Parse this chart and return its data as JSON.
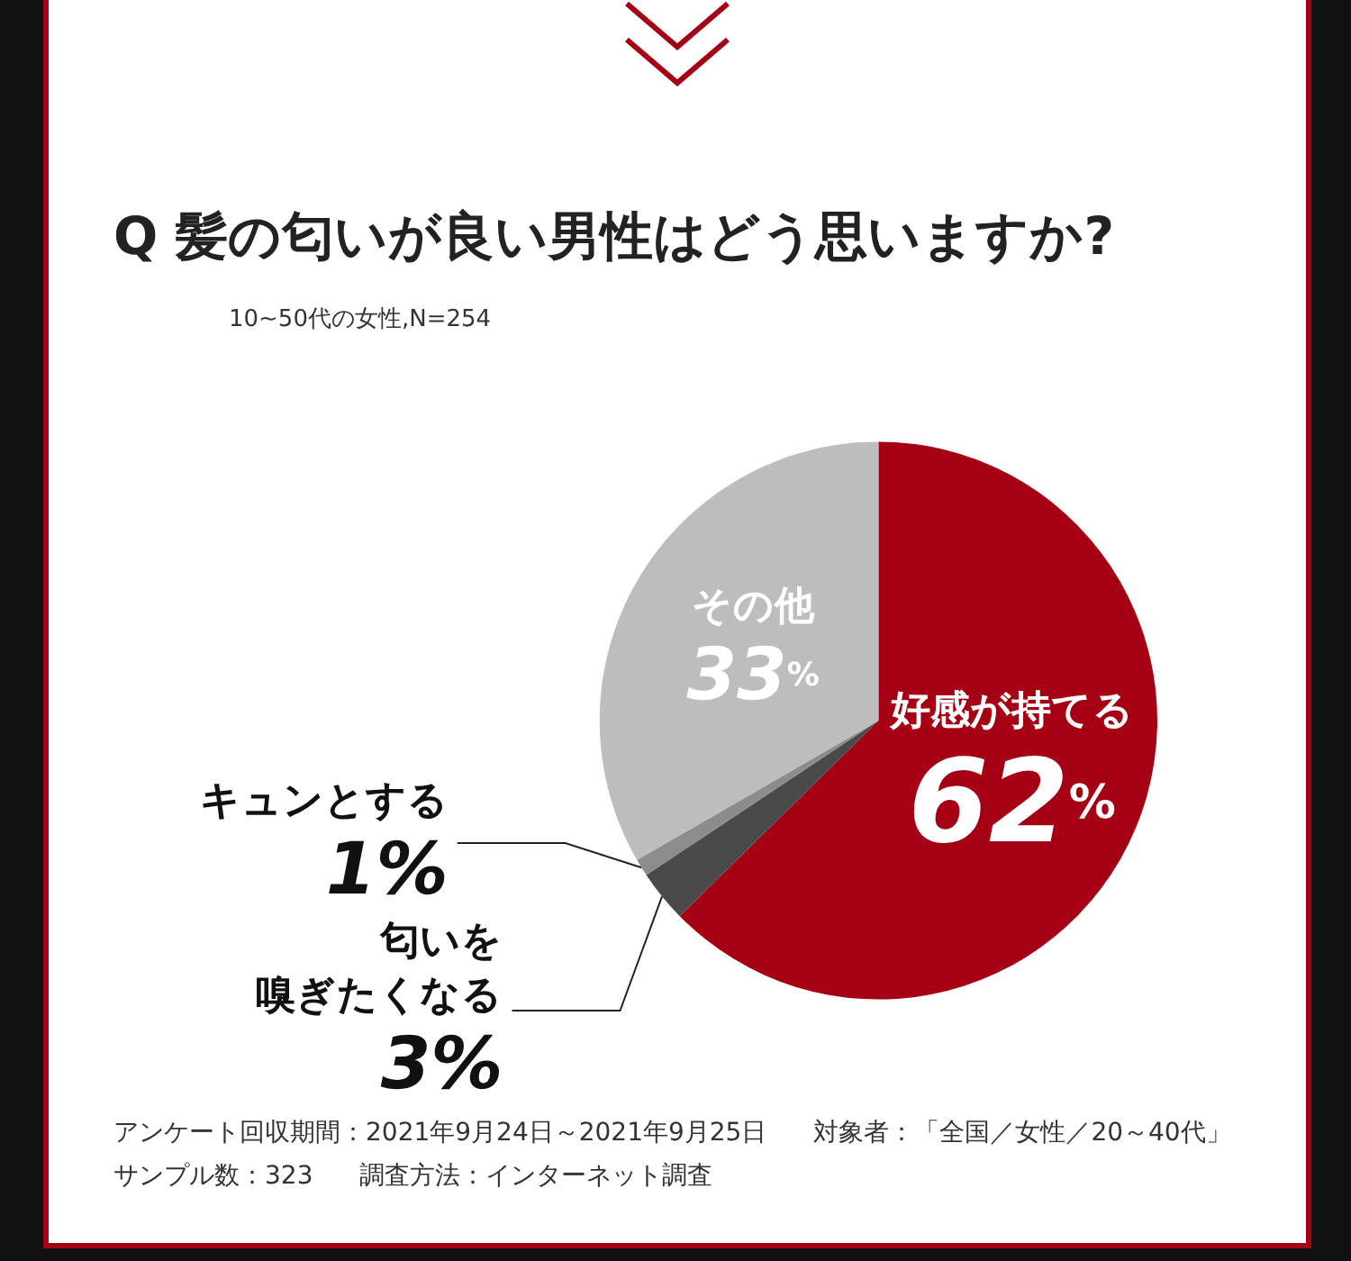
{
  "chart_data": {
    "type": "pie",
    "title": "Q 髪の匂いが良い男性はどう思いますか?",
    "subtitle": "10~50代の女性,N=254",
    "categories": [
      "好感が持てる",
      "匂いを嗅ぎたくなる",
      "キュンとする",
      "その他"
    ],
    "values": [
      62,
      3,
      1,
      33
    ],
    "value_labels": [
      "62%",
      "3%",
      "1%",
      "33%"
    ],
    "colors": [
      "#a50013",
      "#4a4a4a",
      "#8c8c8c",
      "#bdbdbd"
    ],
    "annotations": [
      "アンケート回収期間：2021年9月24日～2021年9月25日",
      "対象者：「全国／女性／20～40代」",
      "サンプル数：323",
      "調査方法：インターネット調査"
    ]
  }
}
